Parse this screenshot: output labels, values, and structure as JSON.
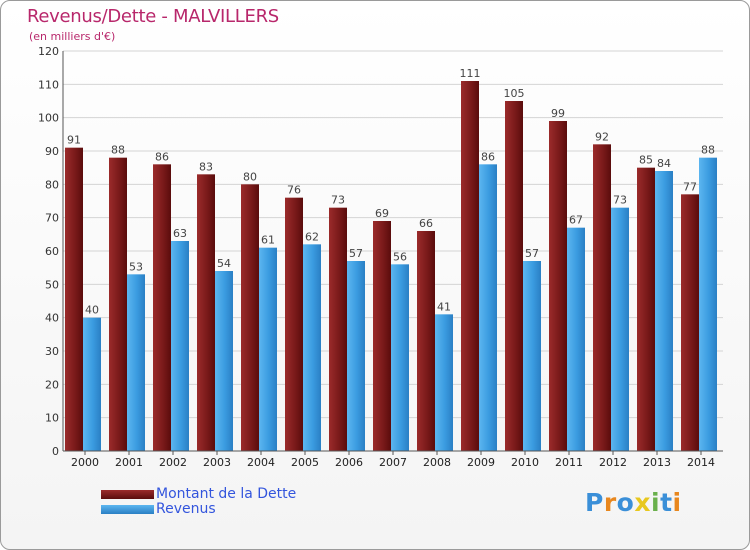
{
  "chart_data": {
    "type": "bar",
    "title": "Revenus/Dette - MALVILLERS",
    "subtitle": "(en milliers d'€)",
    "categories": [
      "2000",
      "2001",
      "2002",
      "2003",
      "2004",
      "2005",
      "2006",
      "2007",
      "2008",
      "2009",
      "2010",
      "2011",
      "2012",
      "2013",
      "2014"
    ],
    "series": [
      {
        "name": "Montant de la Dette",
        "color": "#7a1a1a",
        "values": [
          91,
          88,
          86,
          83,
          80,
          76,
          73,
          69,
          66,
          111,
          105,
          99,
          92,
          85,
          77
        ]
      },
      {
        "name": "Revenus",
        "color": "#3a9be0",
        "values": [
          40,
          53,
          63,
          54,
          61,
          62,
          57,
          56,
          41,
          86,
          57,
          67,
          73,
          84,
          88
        ]
      }
    ],
    "ylim": [
      0,
      120
    ],
    "yticks": [
      0,
      10,
      20,
      30,
      40,
      50,
      60,
      70,
      80,
      90,
      100,
      110,
      120
    ],
    "grid": true,
    "legend_position": "bottom-left"
  },
  "logo": {
    "text": "Proxiti",
    "colors": [
      "#3a8fd8",
      "#e8871e",
      "#3a8fd8",
      "#e8c81e",
      "#6ab04c",
      "#3a8fd8",
      "#e8871e"
    ]
  }
}
